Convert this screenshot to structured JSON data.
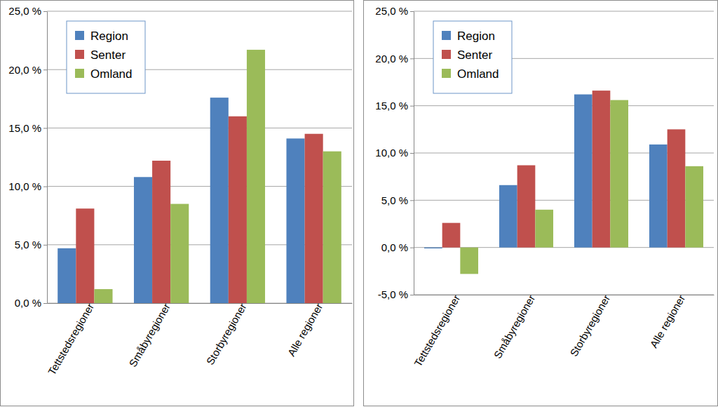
{
  "chart_data": [
    {
      "type": "bar",
      "categories": [
        "Tettstedsregioner",
        "Småbyregioner",
        "Storbyregioner",
        "Alle regioner"
      ],
      "series": [
        {
          "name": "Region",
          "color": "#4f81bd",
          "values": [
            4.7,
            10.8,
            17.6,
            14.1
          ]
        },
        {
          "name": "Senter",
          "color": "#c0504d",
          "values": [
            8.1,
            12.2,
            16.0,
            14.5
          ]
        },
        {
          "name": "Omland",
          "color": "#9bbb59",
          "values": [
            1.2,
            8.5,
            21.7,
            13.0
          ]
        }
      ],
      "ylim": [
        0,
        25
      ],
      "yticks": [
        {
          "value": 0,
          "label": "0,0 %"
        },
        {
          "value": 5,
          "label": "5,0 %"
        },
        {
          "value": 10,
          "label": "10,0 %"
        },
        {
          "value": 15,
          "label": "15,0 %"
        },
        {
          "value": 20,
          "label": "20,0 %"
        },
        {
          "value": 25,
          "label": "25,0 %"
        }
      ],
      "grid": true,
      "legend": "top-left"
    },
    {
      "type": "bar",
      "categories": [
        "Tettstedsregioner",
        "Småbyregioner",
        "Storbyregioner",
        "Alle regioner"
      ],
      "series": [
        {
          "name": "Region",
          "color": "#4f81bd",
          "values": [
            -0.1,
            6.6,
            16.2,
            10.9
          ]
        },
        {
          "name": "Senter",
          "color": "#c0504d",
          "values": [
            2.6,
            8.7,
            16.6,
            12.5
          ]
        },
        {
          "name": "Omland",
          "color": "#9bbb59",
          "values": [
            -2.8,
            4.0,
            15.6,
            8.6
          ]
        }
      ],
      "ylim": [
        -5,
        25
      ],
      "yticks": [
        {
          "value": -5,
          "label": "-5,0 %"
        },
        {
          "value": 0,
          "label": "0,0 %"
        },
        {
          "value": 5,
          "label": "5,0 %"
        },
        {
          "value": 10,
          "label": "10,0 %"
        },
        {
          "value": 15,
          "label": "15,0 %"
        },
        {
          "value": 20,
          "label": "20,0 %"
        },
        {
          "value": 25,
          "label": "25,0 %"
        }
      ],
      "grid": true,
      "legend": "top-left"
    }
  ]
}
